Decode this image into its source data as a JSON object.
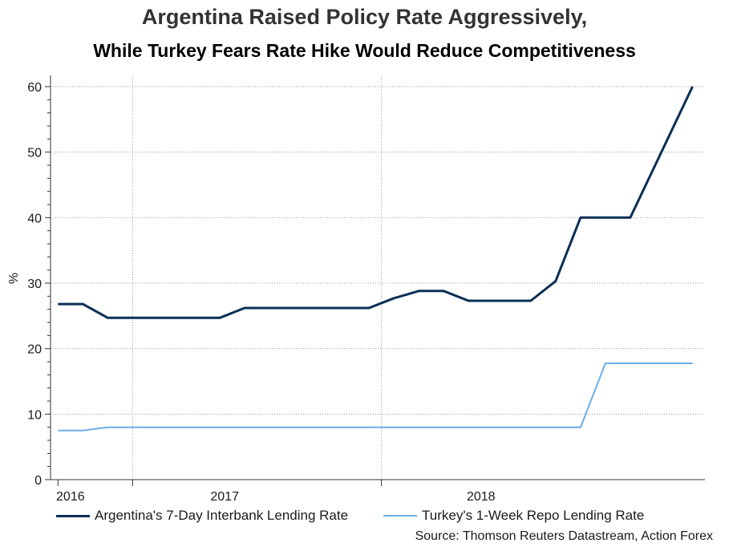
{
  "chart_data": {
    "type": "line",
    "title": "Argentina Raised Policy Rate Aggressively,",
    "subtitle": "While Turkey Fears Rate Hike Would Reduce Competitiveness",
    "ylabel": "%",
    "xlabel": "",
    "ylim": [
      0,
      60
    ],
    "yticks": [
      0,
      10,
      20,
      30,
      40,
      50,
      60
    ],
    "ytick_labels": [
      "0",
      "10",
      "20",
      "30",
      "40",
      "50",
      "60"
    ],
    "xlim": [
      2015.97,
      2018.6
    ],
    "xtick_labels": [
      {
        "label": "2016",
        "x": 2016.05
      },
      {
        "label": "2017",
        "x": 2016.67
      },
      {
        "label": "2018",
        "x": 2017.7
      }
    ],
    "vgrid_x": [
      2016.3,
      2017.3
    ],
    "grid": true,
    "series": [
      {
        "name": "Argentina's 7-Day Interbank Lending Rate",
        "color": "#0b2f55",
        "width": 3,
        "points": [
          [
            2016.0,
            26.8
          ],
          [
            2016.1,
            26.8
          ],
          [
            2016.2,
            24.7
          ],
          [
            2016.4,
            24.7
          ],
          [
            2016.5,
            24.7
          ],
          [
            2016.65,
            24.7
          ],
          [
            2016.75,
            26.2
          ],
          [
            2017.0,
            26.2
          ],
          [
            2017.25,
            26.2
          ],
          [
            2017.35,
            27.7
          ],
          [
            2017.45,
            28.8
          ],
          [
            2017.55,
            28.8
          ],
          [
            2017.65,
            27.3
          ],
          [
            2017.9,
            27.3
          ],
          [
            2018.0,
            30.3
          ],
          [
            2018.1,
            40.0
          ],
          [
            2018.3,
            40.0
          ],
          [
            2018.55,
            60.0
          ]
        ]
      },
      {
        "name": "Turkey's 1-Week Repo Lending Rate",
        "color": "#6aaee8",
        "width": 2,
        "points": [
          [
            2016.0,
            7.5
          ],
          [
            2016.1,
            7.5
          ],
          [
            2016.2,
            8.0
          ],
          [
            2018.1,
            8.0
          ],
          [
            2018.2,
            17.75
          ],
          [
            2018.55,
            17.75
          ]
        ]
      }
    ],
    "legend_position": "bottom",
    "source": "Source: Thomson Reuters Datastream, Action Forex"
  }
}
